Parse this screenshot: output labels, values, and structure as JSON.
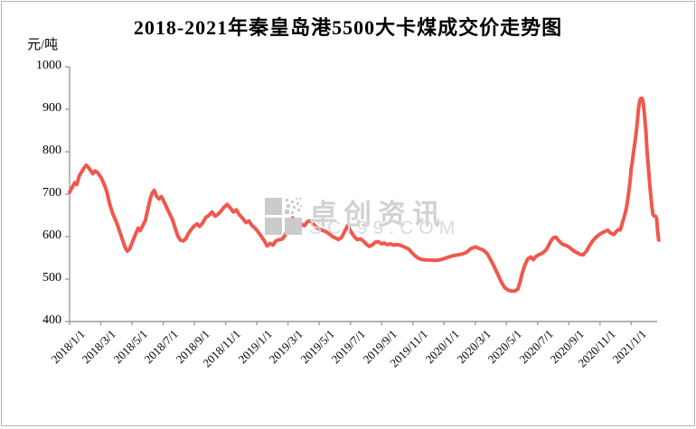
{
  "page": {
    "title": "2018-2021年秦皇岛港5500大卡煤成交价走势图",
    "unit_label": "元/吨"
  },
  "watermark": {
    "brand": "卓创资讯",
    "site": "SCI99.COM",
    "logo": "sci99-pixel-squares-logo",
    "color": "#d2d2d2"
  },
  "chart_data": {
    "type": "line",
    "title": "2018-2021年秦皇岛港5500大卡煤成交价走势图",
    "xlabel": "",
    "ylabel": "元/吨",
    "ylim": [
      400,
      1000
    ],
    "y_ticks": [
      400,
      500,
      600,
      700,
      800,
      900,
      1000
    ],
    "x_tick_labels": [
      "2018/1/1",
      "2018/3/1",
      "2018/5/1",
      "2018/7/1",
      "2018/9/1",
      "2018/11/1",
      "2019/1/1",
      "2019/3/1",
      "2019/5/1",
      "2019/7/1",
      "2019/9/1",
      "2019/11/1",
      "2020/1/1",
      "2020/3/1",
      "2020/5/1",
      "2020/7/1",
      "2020/9/1",
      "2020/11/1",
      "2021/1/1"
    ],
    "grid": false,
    "legend_position": "none",
    "line_color": "#f0584c",
    "axis_color": "#9c9c9c",
    "series": [
      {
        "name": "秦皇岛港5500大卡煤成交价",
        "points": [
          [
            "2018/1/1",
            705
          ],
          [
            "2018/1/6",
            716
          ],
          [
            "2018/1/11",
            727
          ],
          [
            "2018/1/15",
            723
          ],
          [
            "2018/1/20",
            744
          ],
          [
            "2018/1/25",
            753
          ],
          [
            "2018/1/29",
            762
          ],
          [
            "2018/2/3",
            768
          ],
          [
            "2018/2/8",
            762
          ],
          [
            "2018/2/12",
            755
          ],
          [
            "2018/2/16",
            748
          ],
          [
            "2018/2/20",
            755
          ],
          [
            "2018/2/25",
            751
          ],
          [
            "2018/3/2",
            738
          ],
          [
            "2018/3/8",
            722
          ],
          [
            "2018/3/13",
            705
          ],
          [
            "2018/3/18",
            678
          ],
          [
            "2018/3/24",
            655
          ],
          [
            "2018/3/29",
            641
          ],
          [
            "2018/4/3",
            628
          ],
          [
            "2018/4/8",
            610
          ],
          [
            "2018/4/13",
            592
          ],
          [
            "2018/4/18",
            575
          ],
          [
            "2018/4/22",
            566
          ],
          [
            "2018/4/27",
            571
          ],
          [
            "2018/5/2",
            588
          ],
          [
            "2018/5/8",
            606
          ],
          [
            "2018/5/13",
            620
          ],
          [
            "2018/5/17",
            614
          ],
          [
            "2018/5/22",
            626
          ],
          [
            "2018/5/27",
            638
          ],
          [
            "2018/6/1",
            662
          ],
          [
            "2018/6/6",
            688
          ],
          [
            "2018/6/10",
            703
          ],
          [
            "2018/6/14",
            709
          ],
          [
            "2018/6/18",
            696
          ],
          [
            "2018/6/23",
            689
          ],
          [
            "2018/6/28",
            694
          ],
          [
            "2018/7/3",
            681
          ],
          [
            "2018/7/8",
            668
          ],
          [
            "2018/7/14",
            653
          ],
          [
            "2018/7/19",
            640
          ],
          [
            "2018/7/24",
            622
          ],
          [
            "2018/7/29",
            603
          ],
          [
            "2018/8/4",
            592
          ],
          [
            "2018/8/10",
            590
          ],
          [
            "2018/8/15",
            596
          ],
          [
            "2018/8/20",
            608
          ],
          [
            "2018/8/26",
            618
          ],
          [
            "2018/8/31",
            625
          ],
          [
            "2018/9/6",
            630
          ],
          [
            "2018/9/11",
            624
          ],
          [
            "2018/9/17",
            632
          ],
          [
            "2018/9/23",
            645
          ],
          [
            "2018/9/29",
            650
          ],
          [
            "2018/10/5",
            658
          ],
          [
            "2018/10/11",
            648
          ],
          [
            "2018/10/17",
            653
          ],
          [
            "2018/10/23",
            661
          ],
          [
            "2018/10/29",
            670
          ],
          [
            "2018/11/4",
            676
          ],
          [
            "2018/11/10",
            668
          ],
          [
            "2018/11/16",
            658
          ],
          [
            "2018/11/22",
            663
          ],
          [
            "2018/11/28",
            651
          ],
          [
            "2018/12/4",
            643
          ],
          [
            "2018/12/10",
            633
          ],
          [
            "2018/12/16",
            637
          ],
          [
            "2018/12/22",
            626
          ],
          [
            "2018/12/28",
            620
          ],
          [
            "2019/1/3",
            612
          ],
          [
            "2019/1/9",
            602
          ],
          [
            "2019/1/15",
            591
          ],
          [
            "2019/1/21",
            578
          ],
          [
            "2019/1/27",
            584
          ],
          [
            "2019/2/2",
            580
          ],
          [
            "2019/2/8",
            590
          ],
          [
            "2019/2/14",
            593
          ],
          [
            "2019/2/20",
            594
          ],
          [
            "2019/2/26",
            604
          ],
          [
            "2019/3/4",
            634
          ],
          [
            "2019/3/10",
            644
          ],
          [
            "2019/3/16",
            632
          ],
          [
            "2019/3/22",
            637
          ],
          [
            "2019/3/28",
            628
          ],
          [
            "2019/4/3",
            626
          ],
          [
            "2019/4/9",
            636
          ],
          [
            "2019/4/15",
            637
          ],
          [
            "2019/4/21",
            628
          ],
          [
            "2019/4/27",
            621
          ],
          [
            "2019/5/3",
            617
          ],
          [
            "2019/5/9",
            614
          ],
          [
            "2019/5/15",
            611
          ],
          [
            "2019/5/21",
            606
          ],
          [
            "2019/5/27",
            600
          ],
          [
            "2019/6/2",
            597
          ],
          [
            "2019/6/8",
            593
          ],
          [
            "2019/6/14",
            598
          ],
          [
            "2019/6/20",
            612
          ],
          [
            "2019/6/26",
            626
          ],
          [
            "2019/7/2",
            612
          ],
          [
            "2019/7/8",
            601
          ],
          [
            "2019/7/14",
            593
          ],
          [
            "2019/7/20",
            595
          ],
          [
            "2019/7/26",
            590
          ],
          [
            "2019/8/1",
            583
          ],
          [
            "2019/8/7",
            577
          ],
          [
            "2019/8/13",
            580
          ],
          [
            "2019/8/19",
            587
          ],
          [
            "2019/8/25",
            588
          ],
          [
            "2019/8/31",
            583
          ],
          [
            "2019/9/6",
            585
          ],
          [
            "2019/9/12",
            581
          ],
          [
            "2019/9/18",
            583
          ],
          [
            "2019/9/24",
            580
          ],
          [
            "2019/9/30",
            581
          ],
          [
            "2019/10/6",
            580
          ],
          [
            "2019/10/12",
            577
          ],
          [
            "2019/10/18",
            574
          ],
          [
            "2019/10/24",
            570
          ],
          [
            "2019/10/30",
            562
          ],
          [
            "2019/11/5",
            555
          ],
          [
            "2019/11/12",
            549
          ],
          [
            "2019/11/19",
            546
          ],
          [
            "2019/11/26",
            545
          ],
          [
            "2019/12/5",
            545
          ],
          [
            "2019/12/14",
            544
          ],
          [
            "2019/12/23",
            545
          ],
          [
            "2020/1/1",
            548
          ],
          [
            "2020/1/10",
            552
          ],
          [
            "2020/1/19",
            555
          ],
          [
            "2020/1/28",
            557
          ],
          [
            "2020/2/6",
            559
          ],
          [
            "2020/2/15",
            563
          ],
          [
            "2020/2/22",
            571
          ],
          [
            "2020/3/1",
            576
          ],
          [
            "2020/3/9",
            572
          ],
          [
            "2020/3/17",
            568
          ],
          [
            "2020/3/25",
            559
          ],
          [
            "2020/4/1",
            545
          ],
          [
            "2020/4/8",
            528
          ],
          [
            "2020/4/15",
            510
          ],
          [
            "2020/4/22",
            492
          ],
          [
            "2020/4/28",
            480
          ],
          [
            "2020/5/4",
            474
          ],
          [
            "2020/5/10",
            472
          ],
          [
            "2020/5/17",
            472
          ],
          [
            "2020/5/23",
            476
          ],
          [
            "2020/5/28",
            495
          ],
          [
            "2020/6/1",
            512
          ],
          [
            "2020/6/5",
            528
          ],
          [
            "2020/6/9",
            540
          ],
          [
            "2020/6/13",
            548
          ],
          [
            "2020/6/18",
            552
          ],
          [
            "2020/6/23",
            546
          ],
          [
            "2020/6/29",
            554
          ],
          [
            "2020/7/5",
            558
          ],
          [
            "2020/7/11",
            562
          ],
          [
            "2020/7/17",
            568
          ],
          [
            "2020/7/22",
            578
          ],
          [
            "2020/7/27",
            590
          ],
          [
            "2020/8/1",
            597
          ],
          [
            "2020/8/6",
            599
          ],
          [
            "2020/8/12",
            590
          ],
          [
            "2020/8/18",
            583
          ],
          [
            "2020/8/24",
            580
          ],
          [
            "2020/8/30",
            577
          ],
          [
            "2020/9/5",
            572
          ],
          [
            "2020/9/11",
            566
          ],
          [
            "2020/9/17",
            562
          ],
          [
            "2020/9/23",
            558
          ],
          [
            "2020/9/29",
            557
          ],
          [
            "2020/10/5",
            566
          ],
          [
            "2020/10/11",
            579
          ],
          [
            "2020/10/17",
            590
          ],
          [
            "2020/10/23",
            598
          ],
          [
            "2020/10/29",
            604
          ],
          [
            "2020/11/4",
            608
          ],
          [
            "2020/11/10",
            612
          ],
          [
            "2020/11/16",
            615
          ],
          [
            "2020/11/22",
            608
          ],
          [
            "2020/11/28",
            605
          ],
          [
            "2020/12/3",
            613
          ],
          [
            "2020/12/7",
            617
          ],
          [
            "2020/12/10",
            616
          ],
          [
            "2020/12/13",
            628
          ],
          [
            "2020/12/16",
            640
          ],
          [
            "2020/12/19",
            652
          ],
          [
            "2020/12/22",
            668
          ],
          [
            "2020/12/25",
            690
          ],
          [
            "2020/12/28",
            718
          ],
          [
            "2020/12/30",
            740
          ],
          [
            "2021/1/1",
            762
          ],
          [
            "2021/1/3",
            775
          ],
          [
            "2021/1/5",
            795
          ],
          [
            "2021/1/8",
            820
          ],
          [
            "2021/1/11",
            848
          ],
          [
            "2021/1/13",
            872
          ],
          [
            "2021/1/15",
            900
          ],
          [
            "2021/1/17",
            916
          ],
          [
            "2021/1/19",
            925
          ],
          [
            "2021/1/22",
            926
          ],
          [
            "2021/1/24",
            918
          ],
          [
            "2021/1/26",
            898
          ],
          [
            "2021/1/28",
            870
          ],
          [
            "2021/1/30",
            842
          ],
          [
            "2021/2/1",
            808
          ],
          [
            "2021/2/3",
            778
          ],
          [
            "2021/2/5",
            748
          ],
          [
            "2021/2/7",
            718
          ],
          [
            "2021/2/9",
            692
          ],
          [
            "2021/2/11",
            668
          ],
          [
            "2021/2/13",
            652
          ],
          [
            "2021/2/15",
            649
          ],
          [
            "2021/2/18",
            648
          ],
          [
            "2021/2/20",
            643
          ],
          [
            "2021/2/22",
            615
          ],
          [
            "2021/2/24",
            592
          ]
        ]
      }
    ]
  }
}
